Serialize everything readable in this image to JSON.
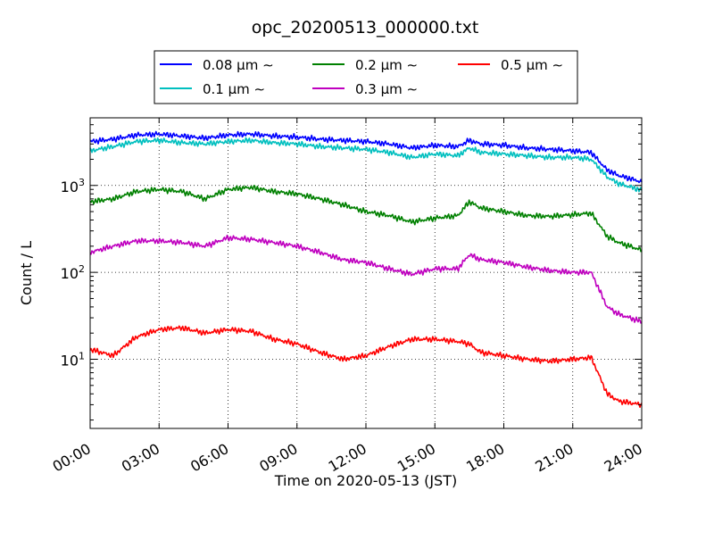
{
  "chart_data": {
    "type": "line",
    "title": "opc_20200513_000000.txt",
    "xlabel": "Time on 2020-05-13 (JST)",
    "ylabel": "Count / L",
    "x_unit": "hours",
    "xlim": [
      0,
      24
    ],
    "ylim": [
      1.6,
      6000
    ],
    "y_scale": "log",
    "grid": true,
    "legend_position": "top",
    "x_ticks": [
      {
        "value": 0,
        "label": "00:00"
      },
      {
        "value": 3,
        "label": "03:00"
      },
      {
        "value": 6,
        "label": "06:00"
      },
      {
        "value": 9,
        "label": "09:00"
      },
      {
        "value": 12,
        "label": "12:00"
      },
      {
        "value": 15,
        "label": "15:00"
      },
      {
        "value": 18,
        "label": "18:00"
      },
      {
        "value": 21,
        "label": "21:00"
      },
      {
        "value": 24,
        "label": "24:00"
      }
    ],
    "y_ticks": [
      {
        "value": 10,
        "base": "10",
        "exp": "1"
      },
      {
        "value": 100,
        "base": "10",
        "exp": "2"
      },
      {
        "value": 1000,
        "base": "10",
        "exp": "3"
      }
    ],
    "x": [
      0,
      1,
      2,
      3,
      4,
      5,
      6,
      7,
      8,
      9,
      10,
      11,
      12,
      13,
      14,
      15,
      16,
      16.5,
      17,
      18,
      19,
      20,
      21,
      21.8,
      22.5,
      23,
      24
    ],
    "series": [
      {
        "name": "0.08 μm ∼",
        "color": "#0000ff",
        "values": [
          3200,
          3400,
          3800,
          3900,
          3700,
          3500,
          3800,
          3900,
          3700,
          3600,
          3400,
          3300,
          3200,
          3000,
          2700,
          2900,
          2800,
          3300,
          3000,
          2900,
          2700,
          2600,
          2500,
          2400,
          1500,
          1300,
          1100
        ]
      },
      {
        "name": "0.1 μm ∼",
        "color": "#00bfbf",
        "values": [
          2500,
          2800,
          3200,
          3300,
          3100,
          3000,
          3200,
          3300,
          3100,
          3000,
          2800,
          2700,
          2600,
          2400,
          2100,
          2300,
          2200,
          2700,
          2400,
          2300,
          2200,
          2100,
          2100,
          2000,
          1250,
          1050,
          880
        ]
      },
      {
        "name": "0.2 μm ∼",
        "color": "#008000",
        "values": [
          650,
          700,
          850,
          900,
          850,
          700,
          900,
          950,
          850,
          800,
          700,
          600,
          500,
          450,
          380,
          420,
          450,
          650,
          550,
          500,
          450,
          440,
          460,
          480,
          260,
          220,
          180
        ]
      },
      {
        "name": "0.3 μm ∼",
        "color": "#bf00bf",
        "values": [
          170,
          200,
          230,
          230,
          220,
          200,
          250,
          240,
          220,
          200,
          170,
          140,
          130,
          110,
          95,
          110,
          110,
          160,
          140,
          130,
          115,
          105,
          100,
          100,
          40,
          33,
          27
        ]
      },
      {
        "name": "0.5 μm ∼",
        "color": "#ff0000",
        "values": [
          13,
          11,
          18,
          22,
          23,
          20,
          22,
          21,
          17,
          15,
          12,
          10,
          11,
          14,
          17,
          17,
          16,
          15,
          12,
          11,
          10,
          9.5,
          10,
          10.5,
          4,
          3.3,
          3
        ]
      }
    ]
  }
}
